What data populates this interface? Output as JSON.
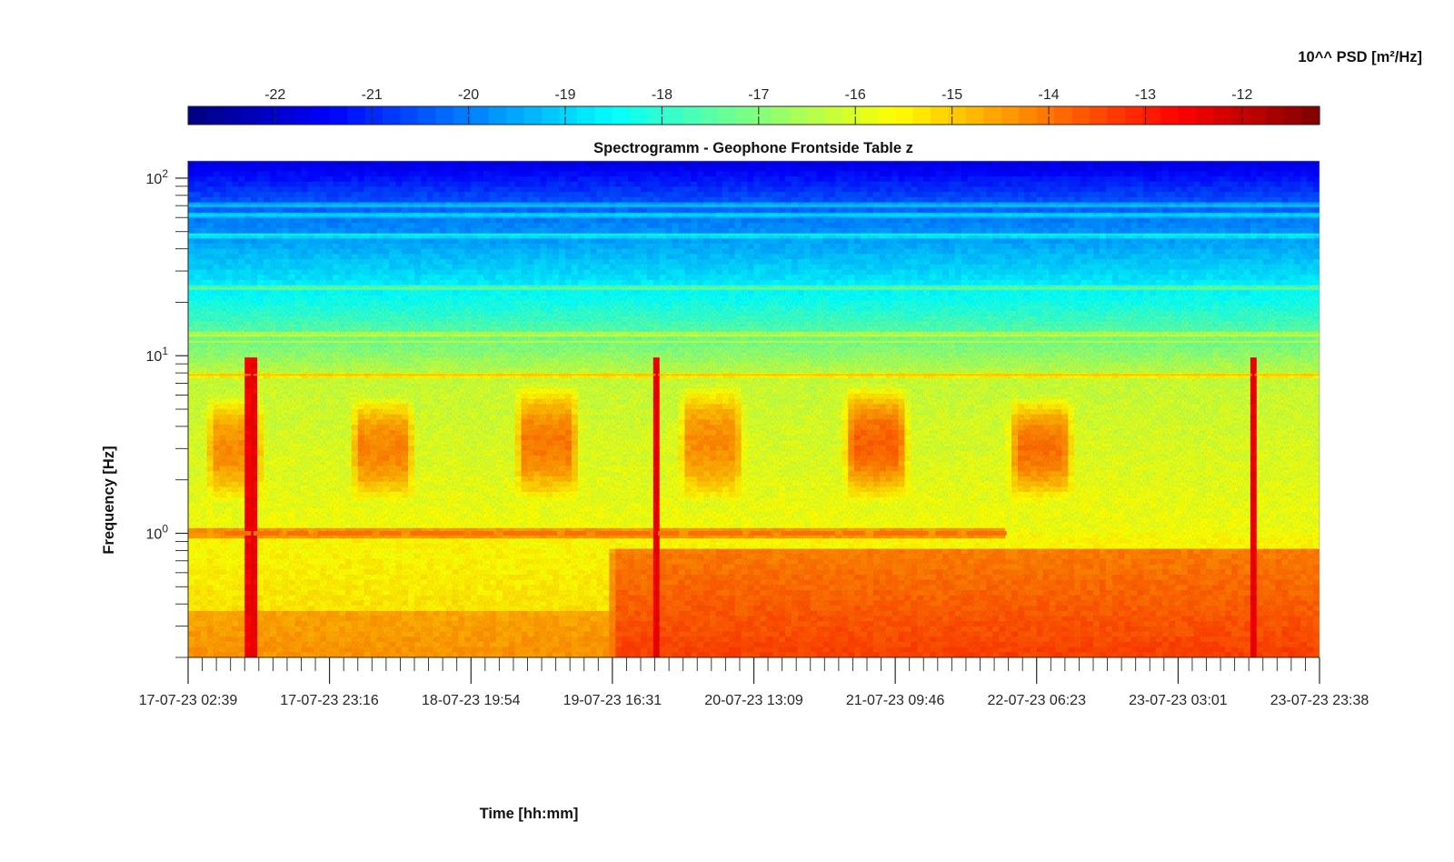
{
  "chart_data": {
    "type": "heatmap",
    "title": "Spectrogramm - Geophone Frontside Table z",
    "xlabel": "Time [hh:mm]",
    "ylabel": "Frequency [Hz]",
    "y_scale": "log",
    "ylim": [
      0.2,
      125
    ],
    "y_ticks": [
      {
        "value": 1,
        "label": "10",
        "exponent": "0"
      },
      {
        "value": 10,
        "label": "10",
        "exponent": "1"
      },
      {
        "value": 100,
        "label": "10",
        "exponent": "2"
      }
    ],
    "x_ticks": [
      "17-07-23 02:39",
      "17-07-23 23:16",
      "18-07-23 19:54",
      "19-07-23 16:31",
      "20-07-23 13:09",
      "21-07-23 09:46",
      "22-07-23 06:23",
      "23-07-23 03:01",
      "23-07-23 23:38"
    ],
    "xlim": [
      "17-07-23 02:39",
      "23-07-23 23:38"
    ],
    "colorbar": {
      "label": "10^^ PSD [m²/Hz]",
      "ticks": [
        "-22",
        "-21",
        "-20",
        "-19",
        "-18",
        "-17",
        "-16",
        "-15",
        "-14",
        "-13",
        "-12"
      ],
      "range": [
        -22.9,
        -11.2
      ],
      "colormap": "jet",
      "placement": "top"
    },
    "features": {
      "daytime_activity_bands": [
        {
          "start": "17-07-23 05:00",
          "end": "17-07-23 14:00",
          "freq_range": [
            1.5,
            6
          ],
          "level": -14.3
        },
        {
          "start": "18-07-23 02:00",
          "end": "18-07-23 12:00",
          "freq_range": [
            1.5,
            6
          ],
          "level": -14.2
        },
        {
          "start": "19-07-23 02:00",
          "end": "19-07-23 12:00",
          "freq_range": [
            1.5,
            7
          ],
          "level": -14.1
        },
        {
          "start": "20-07-23 02:00",
          "end": "20-07-23 12:00",
          "freq_range": [
            1.5,
            7
          ],
          "level": -14.3
        },
        {
          "start": "21-07-23 02:00",
          "end": "21-07-23 12:00",
          "freq_range": [
            1.5,
            7
          ],
          "level": -13.8
        },
        {
          "start": "22-07-23 02:00",
          "end": "22-07-23 12:00",
          "freq_range": [
            1.5,
            6
          ],
          "level": -14.0
        }
      ],
      "horizontal_line_hz": 1.0,
      "horizontal_line_end": "22-07-23 02:00",
      "narrowband_lines_hz": [
        7.8,
        12.0,
        13.0,
        24.0,
        48.0,
        62.0,
        70.0
      ],
      "spikes": [
        "17-07-23 12:00",
        "19-07-23 23:00",
        "23-07-23 14:00"
      ],
      "low_freq_level_day": -14.6,
      "low_freq_level_mid_week": -13.4,
      "high_freq_level": -21.5
    }
  }
}
